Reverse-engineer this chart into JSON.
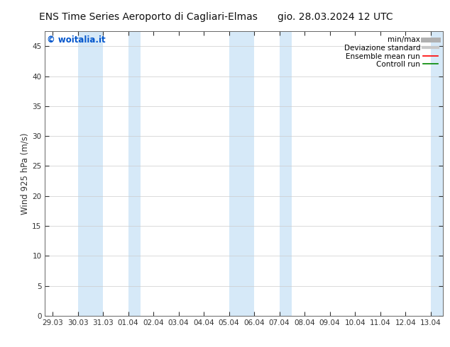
{
  "title_left": "ENS Time Series Aeroporto di Cagliari-Elmas",
  "title_right": "gio. 28.03.2024 12 UTC",
  "ylabel": "Wind 925 hPa (m/s)",
  "ylim": [
    0,
    47.5
  ],
  "yticks": [
    0,
    5,
    10,
    15,
    20,
    25,
    30,
    35,
    40,
    45
  ],
  "xtick_labels": [
    "29.03",
    "30.03",
    "31.03",
    "01.04",
    "02.04",
    "03.04",
    "04.04",
    "05.04",
    "06.04",
    "07.04",
    "08.04",
    "09.04",
    "10.04",
    "11.04",
    "12.04",
    "13.04"
  ],
  "xtick_positions": [
    0,
    1,
    2,
    3,
    4,
    5,
    6,
    7,
    8,
    9,
    10,
    11,
    12,
    13,
    14,
    15
  ],
  "shaded_bands": [
    {
      "xmin": 1,
      "xmax": 2
    },
    {
      "xmin": 3,
      "xmax": 3.5
    },
    {
      "xmin": 7,
      "xmax": 8
    },
    {
      "xmin": 9,
      "xmax": 9.5
    },
    {
      "xmin": 15,
      "xmax": 15.5
    }
  ],
  "shade_color": "#d6e9f8",
  "background_color": "#ffffff",
  "watermark_text": "© woitalia.it",
  "watermark_color": "#0055cc",
  "legend_items": [
    {
      "label": "min/max",
      "color": "#b0b0b0",
      "lw": 5,
      "ls": "-"
    },
    {
      "label": "Deviazione standard",
      "color": "#c8c8c8",
      "lw": 3,
      "ls": "-"
    },
    {
      "label": "Ensemble mean run",
      "color": "#ff0000",
      "lw": 1.2,
      "ls": "-"
    },
    {
      "label": "Controll run",
      "color": "#008800",
      "lw": 1.2,
      "ls": "-"
    }
  ],
  "grid_color": "#cccccc",
  "tick_color": "#333333",
  "axis_color": "#666666",
  "title_fontsize": 10,
  "label_fontsize": 8.5,
  "tick_fontsize": 7.5,
  "legend_fontsize": 7.5,
  "watermark_fontsize": 8.5
}
